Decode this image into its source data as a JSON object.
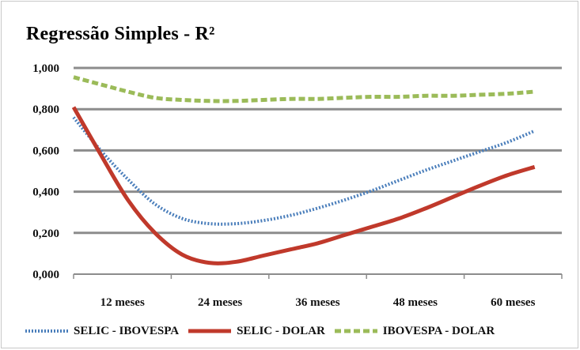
{
  "chart_data": {
    "type": "line",
    "title": "Regressão Simples - R²",
    "categories": [
      "12 meses",
      "24 meses",
      "36 meses",
      "48 meses",
      "60 meses"
    ],
    "x": [
      12,
      15,
      18,
      21,
      24,
      27,
      30,
      33,
      36,
      39,
      42,
      45,
      48,
      51,
      54,
      57,
      60,
      63
    ],
    "x_range": [
      12,
      66
    ],
    "ylim": [
      0,
      1
    ],
    "yticks": [
      "1,000",
      "0,800",
      "0,600",
      "0,400",
      "0,200",
      "0,000"
    ],
    "ytick_values": [
      1.0,
      0.8,
      0.6,
      0.4,
      0.2,
      0.0
    ],
    "grid": true,
    "legend_position": "bottom",
    "series": [
      {
        "name": "SELIC - IBOVESPA",
        "style": "dotted",
        "color": "#4a7ebb",
        "values": [
          0.76,
          0.6,
          0.46,
          0.34,
          0.27,
          0.245,
          0.245,
          0.26,
          0.285,
          0.32,
          0.36,
          0.405,
          0.455,
          0.505,
          0.55,
          0.595,
          0.64,
          0.695
        ]
      },
      {
        "name": "SELIC - DOLAR",
        "style": "solid",
        "color": "#c0392b",
        "values": [
          0.81,
          0.58,
          0.36,
          0.2,
          0.095,
          0.055,
          0.06,
          0.09,
          0.12,
          0.15,
          0.19,
          0.23,
          0.27,
          0.32,
          0.375,
          0.43,
          0.48,
          0.52
        ]
      },
      {
        "name": "IBOVESPA - DOLAR",
        "style": "dashed",
        "color": "#9bbb59",
        "values": [
          0.955,
          0.92,
          0.885,
          0.855,
          0.845,
          0.84,
          0.84,
          0.845,
          0.85,
          0.85,
          0.855,
          0.86,
          0.86,
          0.865,
          0.865,
          0.87,
          0.875,
          0.885
        ]
      }
    ]
  }
}
